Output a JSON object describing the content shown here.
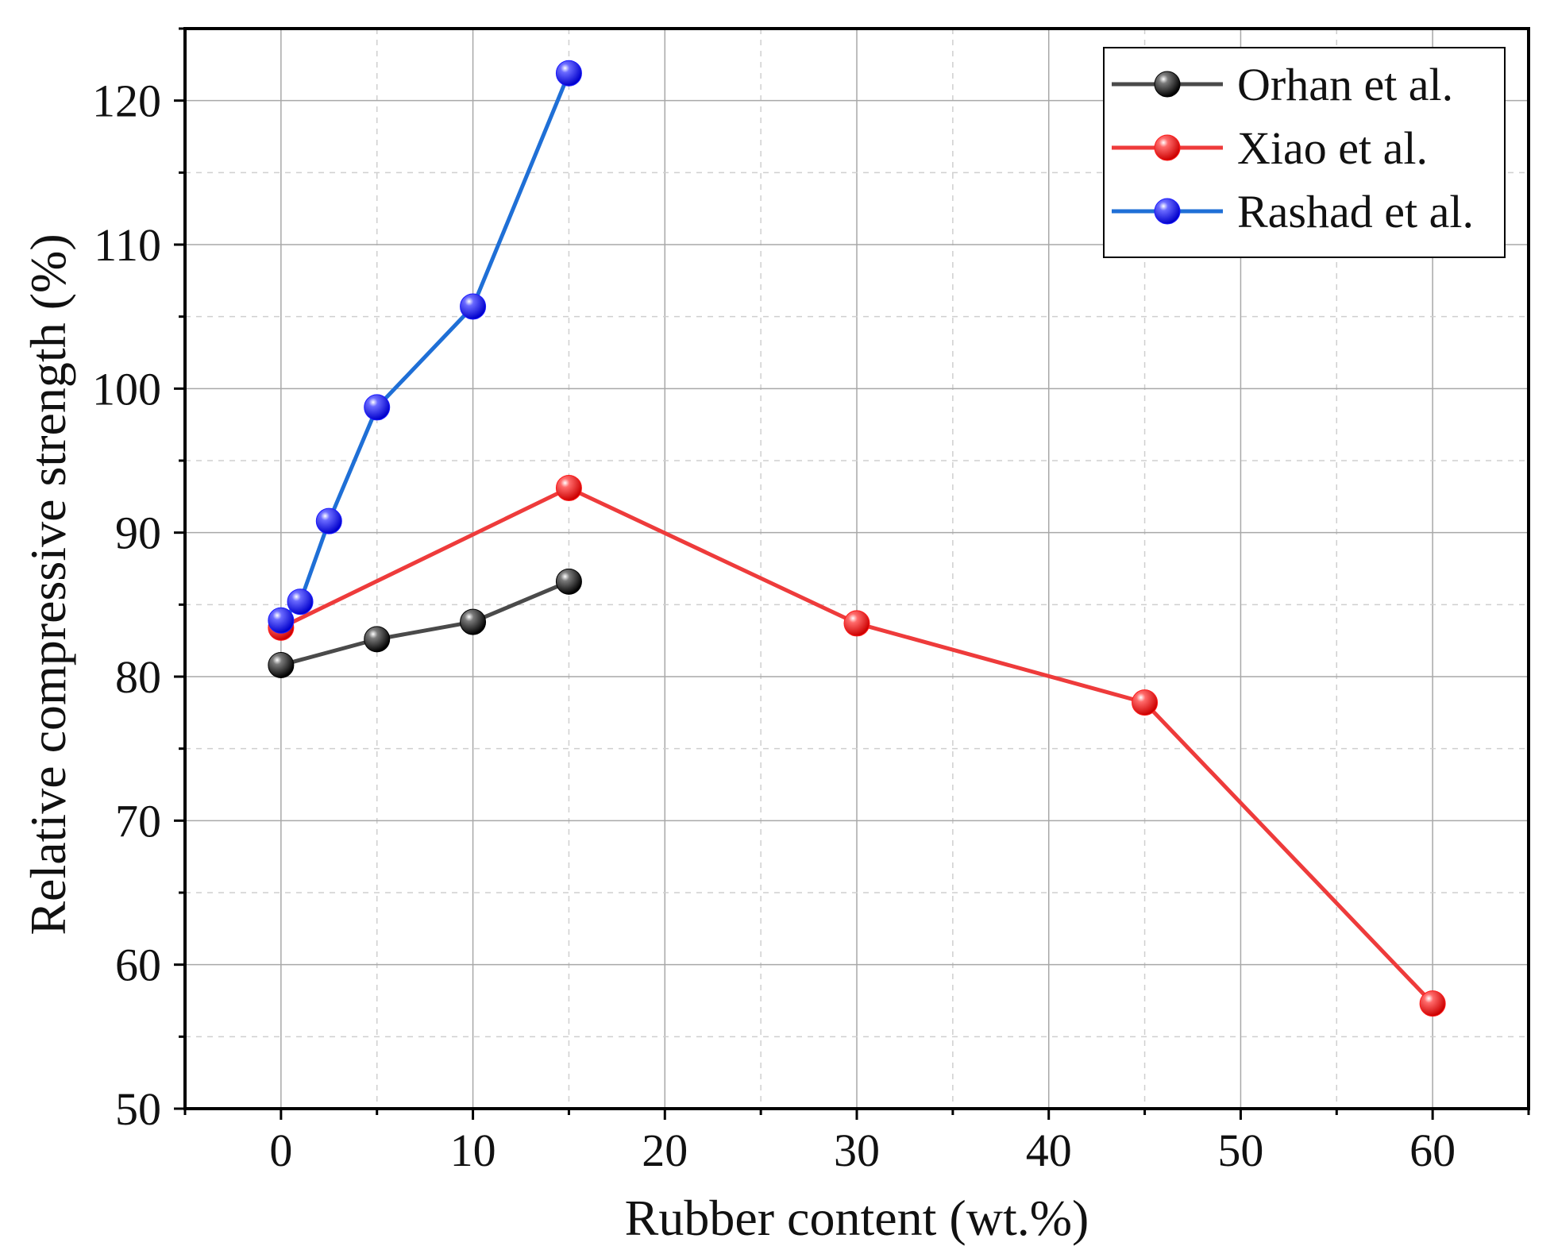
{
  "chart_data": {
    "type": "line",
    "title": "",
    "xlabel": "Rubber content (wt.%)",
    "ylabel": "Relative compressive strength (%)",
    "xlim": [
      -5,
      65
    ],
    "ylim": [
      50,
      125
    ],
    "xticks": [
      0,
      10,
      20,
      30,
      40,
      50,
      60
    ],
    "yticks": [
      50,
      60,
      70,
      80,
      90,
      100,
      110,
      120
    ],
    "grid": true,
    "legend_position": "top-right",
    "series": [
      {
        "name": "Orhan et al.",
        "color": "#000000",
        "line_color": "#4a4a4a",
        "x": [
          0,
          5,
          10,
          15
        ],
        "y": [
          80.8,
          82.6,
          83.8,
          86.6
        ]
      },
      {
        "name": "Xiao et al.",
        "color": "#ff1a1a",
        "line_color": "#ee3b3b",
        "x": [
          0,
          15,
          30,
          45,
          60
        ],
        "y": [
          83.4,
          93.1,
          83.7,
          78.2,
          57.3
        ]
      },
      {
        "name": "Rashad et al.",
        "color": "#1a1aff",
        "line_color": "#1f6fd6",
        "x": [
          0,
          1,
          2.5,
          5,
          10,
          15
        ],
        "y": [
          83.9,
          85.2,
          90.8,
          98.7,
          105.7,
          121.9
        ]
      }
    ]
  }
}
